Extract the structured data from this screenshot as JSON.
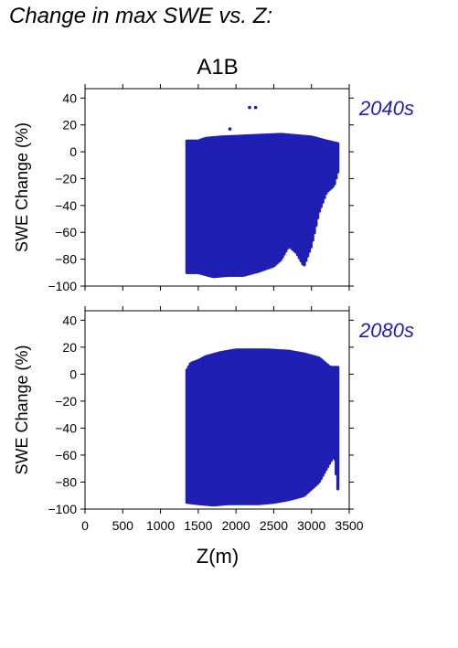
{
  "page_title": "Change in max SWE vs. Z:",
  "colors": {
    "points": "#1f1fb4",
    "period_label": "#1f1fb4",
    "axes": "#000000"
  },
  "chart_data": [
    {
      "type": "scatter",
      "title": "A1B",
      "period_label": "2040s",
      "ylabel": "SWE Change (%)",
      "xlabel": "",
      "xlim": [
        0,
        3500
      ],
      "ylim": [
        -100,
        47
      ],
      "x_ticks": [
        0,
        500,
        1000,
        1500,
        2000,
        2500,
        3000,
        3500
      ],
      "y_ticks": [
        -100,
        -80,
        -60,
        -40,
        -20,
        0,
        20,
        40
      ],
      "y_tick_labels": [
        "−100",
        "−80",
        "−60",
        "−40",
        "−20",
        "0",
        "20",
        "40"
      ],
      "grid": false,
      "point_cloud": {
        "x_range": [
          1350,
          3350
        ],
        "upper_envelope": [
          [
            1350,
            8
          ],
          [
            1500,
            8
          ],
          [
            1600,
            10
          ],
          [
            1800,
            11
          ],
          [
            2200,
            12
          ],
          [
            2600,
            13
          ],
          [
            2800,
            12
          ],
          [
            3000,
            11
          ],
          [
            3200,
            8
          ],
          [
            3350,
            6
          ]
        ],
        "lower_envelope": [
          [
            1350,
            -90
          ],
          [
            1500,
            -90
          ],
          [
            1700,
            -93
          ],
          [
            1900,
            -92
          ],
          [
            2100,
            -92
          ],
          [
            2300,
            -89
          ],
          [
            2500,
            -85
          ],
          [
            2600,
            -80
          ],
          [
            2700,
            -70
          ],
          [
            2800,
            -75
          ],
          [
            2900,
            -85
          ],
          [
            3000,
            -70
          ],
          [
            3100,
            -45
          ],
          [
            3200,
            -30
          ],
          [
            3300,
            -25
          ],
          [
            3350,
            -15
          ]
        ]
      },
      "outliers": [
        {
          "x": 2180,
          "y": 33
        },
        {
          "x": 2260,
          "y": 33
        },
        {
          "x": 1920,
          "y": 17
        }
      ]
    },
    {
      "type": "scatter",
      "title": "",
      "period_label": "2080s",
      "ylabel": "SWE Change (%)",
      "xlabel": "Z(m)",
      "xlim": [
        0,
        3500
      ],
      "ylim": [
        -100,
        47
      ],
      "x_ticks": [
        0,
        500,
        1000,
        1500,
        2000,
        2500,
        3000,
        3500
      ],
      "x_tick_labels": [
        "0",
        "500",
        "1000",
        "1500",
        "2000",
        "2500",
        "3000",
        "3500"
      ],
      "y_ticks": [
        -100,
        -80,
        -60,
        -40,
        -20,
        0,
        20,
        40
      ],
      "y_tick_labels": [
        "−100",
        "−80",
        "−60",
        "−40",
        "−20",
        "0",
        "20",
        "40"
      ],
      "grid": false,
      "point_cloud": {
        "x_range": [
          1350,
          3350
        ],
        "upper_envelope": [
          [
            1350,
            3
          ],
          [
            1400,
            8
          ],
          [
            1500,
            10
          ],
          [
            1600,
            13
          ],
          [
            1800,
            16
          ],
          [
            2000,
            18
          ],
          [
            2400,
            18
          ],
          [
            2700,
            17
          ],
          [
            2900,
            15
          ],
          [
            3100,
            12
          ],
          [
            3250,
            5
          ],
          [
            3350,
            5
          ]
        ],
        "lower_envelope": [
          [
            1350,
            -95
          ],
          [
            1500,
            -96
          ],
          [
            1700,
            -97
          ],
          [
            1900,
            -96
          ],
          [
            2100,
            -96
          ],
          [
            2300,
            -96
          ],
          [
            2500,
            -95
          ],
          [
            2700,
            -93
          ],
          [
            2900,
            -90
          ],
          [
            3000,
            -85
          ],
          [
            3100,
            -80
          ],
          [
            3200,
            -70
          ],
          [
            3300,
            -60
          ],
          [
            3350,
            -85
          ]
        ]
      },
      "outliers": []
    }
  ]
}
